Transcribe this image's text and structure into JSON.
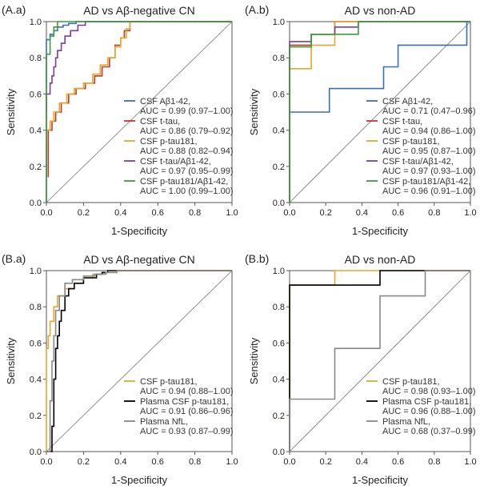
{
  "chart_data": [
    {
      "panel_label": "(A.a)",
      "type": "line",
      "title": "AD vs Aβ-negative CN",
      "xlabel": "1-Specificity",
      "ylabel": "Sensitivity",
      "xlim": [
        0,
        1
      ],
      "ylim": [
        0,
        1
      ],
      "ticks": [
        "0.0",
        "0.2",
        "0.4",
        "0.6",
        "0.8",
        "1.0"
      ],
      "series": [
        {
          "name": "CSF Aβ1-42,",
          "auc": "AUC = 0.99 (0.97–1.00)",
          "color": "#3a6fb5",
          "x": [
            0,
            0,
            0.02,
            0.02,
            0.04,
            0.04,
            0.06,
            0.06,
            0.09,
            0.09,
            0.12,
            0.12,
            0.16,
            0.16,
            0.2,
            1.0
          ],
          "y": [
            0,
            0.9,
            0.9,
            0.93,
            0.93,
            0.95,
            0.95,
            0.97,
            0.97,
            0.98,
            0.98,
            0.99,
            0.99,
            1.0,
            1.0,
            1.0
          ]
        },
        {
          "name": "CSF t-tau,",
          "auc": "AUC = 0.86 (0.79–0.92)",
          "color": "#c0392b",
          "x": [
            0.01,
            0.01,
            0.03,
            0.03,
            0.05,
            0.05,
            0.08,
            0.08,
            0.12,
            0.12,
            0.16,
            0.16,
            0.21,
            0.21,
            0.26,
            0.26,
            0.3,
            0.3,
            0.34,
            0.34,
            0.37,
            0.37,
            0.4,
            0.4,
            0.42,
            0.42,
            0.45,
            0.45,
            1.0
          ],
          "y": [
            0.14,
            0.4,
            0.4,
            0.45,
            0.45,
            0.5,
            0.5,
            0.55,
            0.55,
            0.6,
            0.6,
            0.63,
            0.63,
            0.66,
            0.66,
            0.7,
            0.7,
            0.75,
            0.75,
            0.8,
            0.8,
            0.87,
            0.87,
            0.91,
            0.91,
            0.95,
            0.95,
            1.0,
            1.0
          ]
        },
        {
          "name": "CSF p-tau181,",
          "auc": "AUC = 0.88 (0.82–0.94)",
          "color": "#e6a627",
          "x": [
            0,
            0,
            0.02,
            0.02,
            0.04,
            0.04,
            0.07,
            0.07,
            0.11,
            0.11,
            0.15,
            0.15,
            0.2,
            0.2,
            0.25,
            0.25,
            0.29,
            0.29,
            0.33,
            0.33,
            0.37,
            0.37,
            0.4,
            0.4,
            0.43,
            0.43,
            0.45,
            0.45,
            1.0
          ],
          "y": [
            0.27,
            0.4,
            0.4,
            0.45,
            0.45,
            0.5,
            0.5,
            0.55,
            0.55,
            0.6,
            0.6,
            0.63,
            0.63,
            0.66,
            0.66,
            0.71,
            0.71,
            0.76,
            0.76,
            0.8,
            0.8,
            0.86,
            0.86,
            0.91,
            0.91,
            0.96,
            0.96,
            1.0,
            1.0
          ]
        },
        {
          "name": "CSF t-tau/Aβ1-42,",
          "auc": "AUC = 0.97 (0.95–0.99)",
          "color": "#7d3c98",
          "x": [
            0,
            0,
            0.02,
            0.02,
            0.03,
            0.03,
            0.04,
            0.04,
            0.05,
            0.05,
            0.06,
            0.06,
            0.08,
            0.08,
            0.1,
            0.1,
            0.13,
            0.13,
            0.17,
            0.17,
            0.21,
            0.21,
            1.0
          ],
          "y": [
            0.5,
            0.6,
            0.6,
            0.66,
            0.66,
            0.7,
            0.7,
            0.75,
            0.75,
            0.8,
            0.8,
            0.84,
            0.84,
            0.88,
            0.88,
            0.92,
            0.92,
            0.95,
            0.95,
            0.98,
            0.98,
            1.0,
            1.0
          ]
        },
        {
          "name": "CSF p-tau181/Aβ1-42,",
          "auc": "AUC = 1.00 (0.99–1.00)",
          "color": "#3d9a3d",
          "x": [
            0,
            0,
            0.02,
            0.02,
            0.04,
            0.04,
            0.06,
            0.06,
            1.0
          ],
          "y": [
            0,
            0.82,
            0.82,
            0.92,
            0.92,
            0.97,
            0.97,
            1.0,
            1.0
          ]
        }
      ]
    },
    {
      "panel_label": "(A.b)",
      "type": "line",
      "title": "AD vs non-AD",
      "xlabel": "1-Specificity",
      "ylabel": "Sensitivity",
      "xlim": [
        0,
        1
      ],
      "ylim": [
        0,
        1
      ],
      "ticks": [
        "0.0",
        "0.2",
        "0.4",
        "0.6",
        "0.8",
        "1.0"
      ],
      "series": [
        {
          "name": "CSF Aβ1-42,",
          "auc": "AUC = 0.71 (0.47–0.96)",
          "color": "#3a6fb5",
          "x": [
            0,
            0,
            0.22,
            0.22,
            0.52,
            0.52,
            0.6,
            0.6,
            0.98,
            0.98,
            1.0
          ],
          "y": [
            0.45,
            0.5,
            0.5,
            0.63,
            0.63,
            0.75,
            0.75,
            0.87,
            0.87,
            1.0,
            1.0
          ]
        },
        {
          "name": "CSF t-tau,",
          "auc": "AUC = 0.94 (0.86–1.00)",
          "color": "#c0392b",
          "x": [
            0,
            0,
            0.12,
            0.12,
            0.25,
            0.25,
            1.0
          ],
          "y": [
            0,
            0.87,
            0.87,
            0.93,
            0.93,
            1.0,
            1.0
          ]
        },
        {
          "name": "CSF p-tau181,",
          "auc": "AUC = 0.95 (0.87–1.00)",
          "color": "#e6a627",
          "x": [
            0,
            0,
            0.12,
            0.12,
            0.25,
            0.25,
            1.0
          ],
          "y": [
            0,
            0.74,
            0.74,
            0.87,
            0.87,
            1.0,
            1.0
          ]
        },
        {
          "name": "CSF t-tau/Aβ1-42,",
          "auc": "AUC = 0.97 (0.93–1.00)",
          "color": "#7d3c98",
          "x": [
            0,
            0,
            0.12,
            0.12,
            0.25,
            0.25,
            0.38,
            0.38,
            1.0
          ],
          "y": [
            0,
            0.89,
            0.89,
            0.93,
            0.93,
            0.97,
            0.97,
            1.0,
            1.0
          ]
        },
        {
          "name": "CSF p-tau181/Aβ1-42,",
          "auc": "AUC = 0.96 (0.91–1.00)",
          "color": "#3d9a3d",
          "x": [
            0,
            0,
            0.12,
            0.12,
            0.38,
            0.38,
            1.0
          ],
          "y": [
            0,
            0.86,
            0.86,
            0.93,
            0.93,
            1.0,
            1.0
          ]
        }
      ]
    },
    {
      "panel_label": "(B.a)",
      "type": "line",
      "title": "AD vs Aβ-negative CN",
      "xlabel": "1-Specificity",
      "ylabel": "Sensitivity",
      "xlim": [
        0,
        1
      ],
      "ylim": [
        0,
        1
      ],
      "ticks": [
        "0.0",
        "0.2",
        "0.4",
        "0.6",
        "0.8",
        "1.0"
      ],
      "series": [
        {
          "name": "CSF p-tau181,",
          "auc": "AUC = 0.94 (0.88–1.00)",
          "color": "#e6a627",
          "x": [
            0,
            0,
            0.01,
            0.01,
            0.02,
            0.02,
            0.04,
            0.04,
            0.06,
            0.06,
            0.1,
            0.1,
            0.15,
            0.15,
            0.2,
            0.2,
            0.25,
            0.25,
            0.3,
            0.3,
            0.38,
            0.38,
            1.0
          ],
          "y": [
            0,
            0.57,
            0.57,
            0.64,
            0.64,
            0.72,
            0.72,
            0.8,
            0.8,
            0.86,
            0.86,
            0.9,
            0.9,
            0.93,
            0.93,
            0.96,
            0.96,
            0.98,
            0.98,
            0.99,
            0.99,
            1.0,
            1.0
          ]
        },
        {
          "name": "Plasma CSF p-tau181,",
          "auc": "AUC = 0.91 (0.86–0.96)",
          "color": "#000000",
          "x": [
            0,
            0.03,
            0.03,
            0.04,
            0.04,
            0.05,
            0.05,
            0.06,
            0.06,
            0.07,
            0.07,
            0.08,
            0.08,
            0.1,
            0.1,
            0.12,
            0.12,
            0.15,
            0.15,
            0.2,
            0.2,
            0.27,
            0.27,
            0.3,
            0.3,
            0.33,
            0.33,
            1.0
          ],
          "y": [
            0,
            0,
            0.14,
            0.14,
            0.4,
            0.4,
            0.57,
            0.57,
            0.64,
            0.64,
            0.72,
            0.72,
            0.78,
            0.78,
            0.86,
            0.86,
            0.9,
            0.9,
            0.93,
            0.93,
            0.96,
            0.96,
            0.98,
            0.98,
            0.99,
            0.99,
            1.0,
            1.0
          ]
        },
        {
          "name": "Plasma NfL,",
          "auc": "AUC = 0.93 (0.87–0.99)",
          "color": "#888888",
          "x": [
            0,
            0.02,
            0.02,
            0.03,
            0.03,
            0.04,
            0.04,
            0.05,
            0.05,
            0.07,
            0.07,
            0.1,
            0.1,
            0.14,
            0.14,
            0.2,
            0.2,
            0.26,
            0.26,
            0.32,
            0.32,
            0.38,
            0.38,
            1.0
          ],
          "y": [
            0,
            0,
            0.28,
            0.28,
            0.5,
            0.5,
            0.64,
            0.64,
            0.78,
            0.78,
            0.86,
            0.86,
            0.93,
            0.93,
            0.95,
            0.95,
            0.97,
            0.97,
            0.98,
            0.98,
            0.99,
            0.99,
            1.0,
            1.0
          ]
        }
      ]
    },
    {
      "panel_label": "(B.b)",
      "type": "line",
      "title": "AD vs non-AD",
      "xlabel": "1-Specificity",
      "ylabel": "Sensitivity",
      "xlim": [
        0,
        1
      ],
      "ylim": [
        0,
        1
      ],
      "ticks": [
        "0.0",
        "0.2",
        "0.4",
        "0.6",
        "0.8",
        "1.0"
      ],
      "series": [
        {
          "name": "CSF p-tau181,",
          "auc": "AUC = 0.98 (0.93–1.00)",
          "color": "#e6a627",
          "x": [
            0,
            0,
            0.12,
            0.12,
            0.25,
            0.25,
            1.0
          ],
          "y": [
            0,
            0.92,
            0.92,
            0.92,
            0.92,
            1.0,
            1.0
          ]
        },
        {
          "name": "Plasma CSF p-tau181,",
          "auc": "AUC = 0.96 (0.88–1.00)",
          "color": "#000000",
          "x": [
            0,
            0,
            0.5,
            0.5,
            1.0
          ],
          "y": [
            0,
            0.92,
            0.92,
            1.0,
            1.0
          ]
        },
        {
          "name": "Plasma NfL,",
          "auc": "AUC = 0.68 (0.37–0.99)",
          "color": "#888888",
          "x": [
            0,
            0,
            0.25,
            0.25,
            0.5,
            0.5,
            0.75,
            0.75,
            1.0
          ],
          "y": [
            0,
            0.29,
            0.29,
            0.57,
            0.57,
            0.86,
            0.86,
            1.0,
            1.0
          ]
        }
      ]
    }
  ]
}
